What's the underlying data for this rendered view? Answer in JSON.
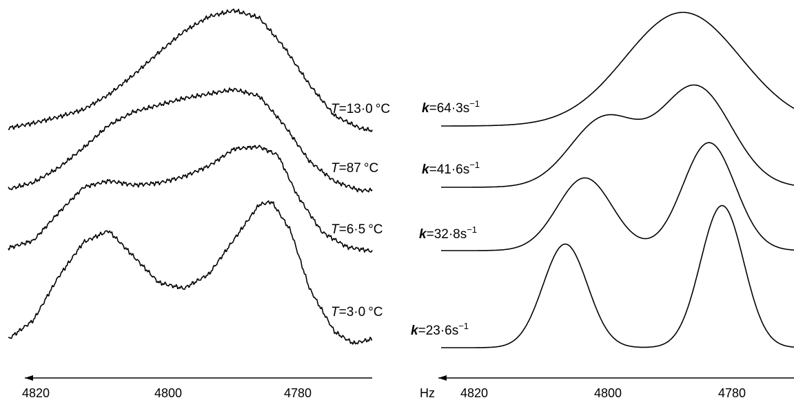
{
  "chart_data": [
    {
      "type": "line",
      "panel": "experimental",
      "x_ticks": [
        "4820",
        "4800",
        "4780"
      ],
      "xlim": [
        4828,
        4770
      ],
      "x_reversed": true,
      "series": [
        {
          "name": "T=13·0 °C",
          "label": {
            "var": "T",
            "eq": "=",
            "num": "13·0",
            "unit": "°C"
          },
          "points": [
            [
              4828,
              0.05
            ],
            [
              4824,
              0.09
            ],
            [
              4820,
              0.14
            ],
            [
              4816,
              0.2
            ],
            [
              4812,
              0.32
            ],
            [
              4808,
              0.48
            ],
            [
              4804,
              0.66
            ],
            [
              4800,
              0.83
            ],
            [
              4796,
              0.95
            ],
            [
              4792,
              1.0
            ],
            [
              4788,
              0.94
            ],
            [
              4784,
              0.7
            ],
            [
              4780,
              0.4
            ],
            [
              4776,
              0.15
            ],
            [
              4772,
              0.05
            ],
            [
              4770,
              0.03
            ]
          ]
        },
        {
          "name": "T=87 °C",
          "label": {
            "var": "T",
            "eq": "=",
            "num": "87",
            "unit": "°C"
          },
          "points": [
            [
              4828,
              0.05
            ],
            [
              4824,
              0.11
            ],
            [
              4820,
              0.24
            ],
            [
              4816,
              0.42
            ],
            [
              4812,
              0.62
            ],
            [
              4808,
              0.74
            ],
            [
              4804,
              0.8
            ],
            [
              4800,
              0.86
            ],
            [
              4796,
              0.9
            ],
            [
              4792,
              0.94
            ],
            [
              4788,
              0.88
            ],
            [
              4784,
              0.62
            ],
            [
              4780,
              0.3
            ],
            [
              4776,
              0.12
            ],
            [
              4772,
              0.04
            ],
            [
              4770,
              0.04
            ]
          ]
        },
        {
          "name": "T=6·5 °C",
          "label": {
            "var": "T",
            "eq": "=",
            "num": "6·5",
            "unit": "°C"
          },
          "points": [
            [
              4828,
              0.05
            ],
            [
              4824,
              0.12
            ],
            [
              4820,
              0.38
            ],
            [
              4816,
              0.62
            ],
            [
              4812,
              0.68
            ],
            [
              4808,
              0.64
            ],
            [
              4804,
              0.66
            ],
            [
              4800,
              0.72
            ],
            [
              4796,
              0.82
            ],
            [
              4792,
              0.98
            ],
            [
              4788,
              1.0
            ],
            [
              4785,
              0.92
            ],
            [
              4782,
              0.55
            ],
            [
              4778,
              0.2
            ],
            [
              4774,
              0.06
            ],
            [
              4770,
              0.02
            ]
          ]
        },
        {
          "name": "T=3·0 °C",
          "label": {
            "var": "T",
            "eq": "=",
            "num": "3·0",
            "unit": "°C"
          },
          "points": [
            [
              4828,
              0.05
            ],
            [
              4824,
              0.18
            ],
            [
              4820,
              0.48
            ],
            [
              4816,
              0.72
            ],
            [
              4812,
              0.8
            ],
            [
              4808,
              0.62
            ],
            [
              4804,
              0.44
            ],
            [
              4800,
              0.4
            ],
            [
              4796,
              0.5
            ],
            [
              4792,
              0.74
            ],
            [
              4788,
              0.98
            ],
            [
              4786,
              1.0
            ],
            [
              4783,
              0.8
            ],
            [
              4780,
              0.4
            ],
            [
              4776,
              0.1
            ],
            [
              4773,
              0.02
            ],
            [
              4770,
              0.05
            ]
          ]
        }
      ]
    },
    {
      "type": "line",
      "panel": "simulated",
      "x_ticks": [
        "4820",
        "4800",
        "4780"
      ],
      "x_unit_label": "Hz",
      "xlim": [
        4828,
        4774
      ],
      "x_reversed": true,
      "series": [
        {
          "name": "k=64·3s⁻¹",
          "label": {
            "var": "k",
            "eq": "=",
            "num": "64·3",
            "unit": "s",
            "exp": "−1"
          },
          "peaks": [
            {
              "x": 4791,
              "w": 8.8,
              "h": 1.0
            }
          ]
        },
        {
          "name": "k=41·6s⁻¹",
          "label": {
            "var": "k",
            "eq": "=",
            "num": "41·6",
            "unit": "s",
            "exp": "−1"
          },
          "peaks": [
            {
              "x": 4803,
              "w": 5.2,
              "h": 0.64
            },
            {
              "x": 4789,
              "w": 5.4,
              "h": 0.94
            }
          ]
        },
        {
          "name": "k=32·8s⁻¹",
          "label": {
            "var": "k",
            "eq": "=",
            "num": "32·8",
            "unit": "s",
            "exp": "−1"
          },
          "peaks": [
            {
              "x": 4806,
              "w": 4.2,
              "h": 0.66
            },
            {
              "x": 4787,
              "w": 4.0,
              "h": 0.98
            }
          ]
        },
        {
          "name": "k=23·6s⁻¹",
          "label": {
            "var": "k",
            "eq": "=",
            "num": "23·6",
            "unit": "s",
            "exp": "−1"
          },
          "peaks": [
            {
              "x": 4809,
              "w": 3.4,
              "h": 0.7
            },
            {
              "x": 4785,
              "w": 3.3,
              "h": 0.96
            }
          ]
        }
      ]
    }
  ]
}
